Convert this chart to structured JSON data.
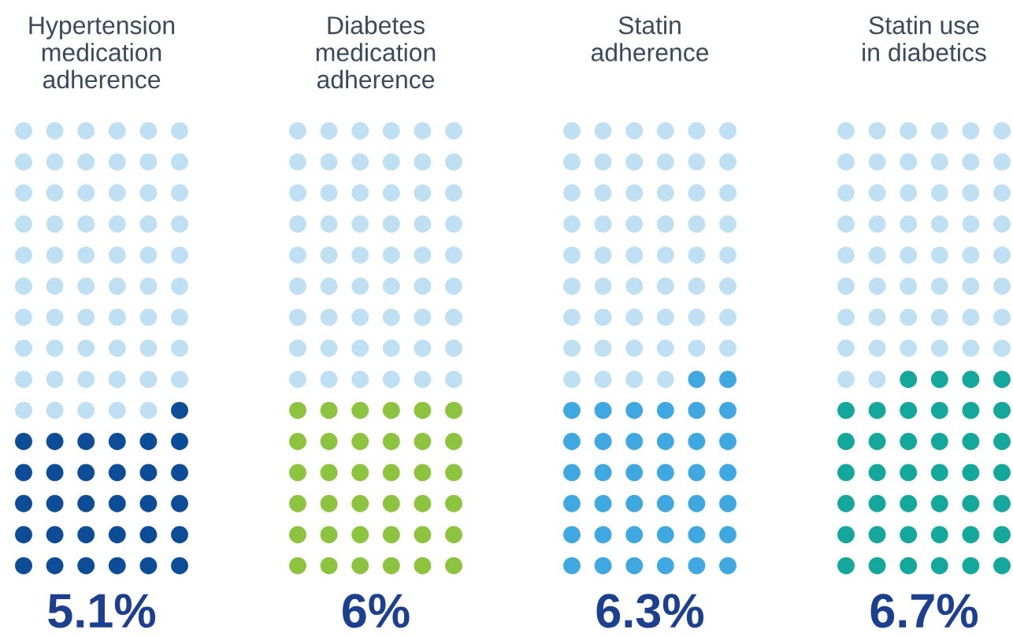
{
  "chart_data": {
    "type": "other",
    "categories": [
      "Hypertension\nmedication\nadherence",
      "Diabetes\nmedication\nadherence",
      "Statin\nadherence",
      "Statin use\nin diabetics"
    ],
    "values": [
      5.1,
      6,
      6.3,
      6.7
    ],
    "value_labels": [
      "5.1%",
      "6%",
      "6.3%",
      "6.7%"
    ],
    "colors": [
      "#0d4c97",
      "#8cc43f",
      "#40a8e0",
      "#14a89c"
    ],
    "legend": false
  }
}
